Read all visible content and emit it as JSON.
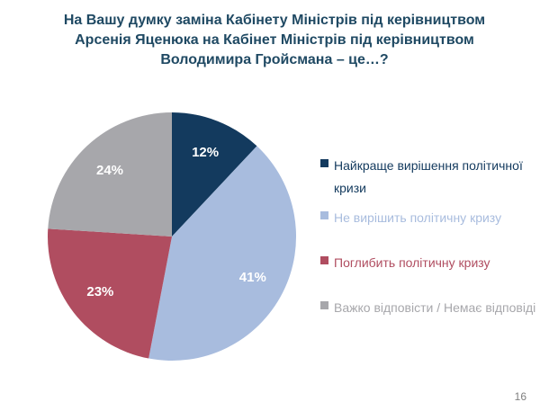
{
  "title": {
    "lines": [
      "На Вашу думку заміна Кабінету Міністрів під керівництвом",
      "Арсенія Яценюка на Кабінет Міністрів під керівництвом",
      "Володимира Гройсмана – це…?"
    ]
  },
  "page": {
    "number": "16"
  },
  "colors": {
    "title_text": "#1F4963",
    "page_number": "#7F7F7F",
    "background": "#FFFFFF",
    "percent_label_text": "#FFFFFF"
  },
  "chart_data": {
    "type": "pie",
    "title": "На Вашу думку заміна Кабінету Міністрів під керівництвом Арсенія Яценюка на Кабінет Міністрів під керівництвом Володимира Гройсмана – це…?",
    "series": [
      {
        "label": "Найкраще вирішення політичної кризи",
        "value": 12,
        "value_label": "12%",
        "color": "#133A5E"
      },
      {
        "label": "Не вирішить політичну кризу",
        "value": 41,
        "value_label": "41%",
        "color": "#A8BCDE"
      },
      {
        "label": "Поглибить політичну кризу",
        "value": 23,
        "value_label": "23%",
        "color": "#B04D60"
      },
      {
        "label": "Важко відповісти / Немає відповіді",
        "value": 24,
        "value_label": "24%",
        "color": "#A7A7AB"
      }
    ],
    "start_angle_deg": 0,
    "direction": "clockwise",
    "legend_position": "right",
    "data_labels": "percent-inside-white"
  }
}
